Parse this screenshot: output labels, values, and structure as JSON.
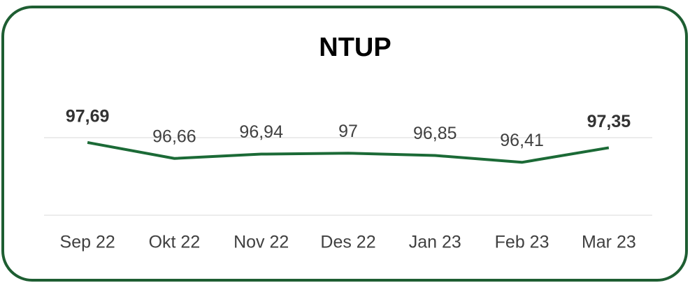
{
  "chart_data": {
    "type": "line",
    "title": "NTUP",
    "categories": [
      "Sep 22",
      "Okt 22",
      "Nov 22",
      "Des 22",
      "Jan 23",
      "Feb 23",
      "Mar 23"
    ],
    "values": [
      97.69,
      96.66,
      96.94,
      97,
      96.85,
      96.41,
      97.35
    ],
    "value_labels": [
      "97,69",
      "96,66",
      "96,94",
      "97",
      "96,85",
      "96,41",
      "97,35"
    ],
    "bold_labels": [
      0,
      6
    ],
    "color": "#1b6a36",
    "ylim": [
      93,
      98
    ],
    "grid": true
  }
}
